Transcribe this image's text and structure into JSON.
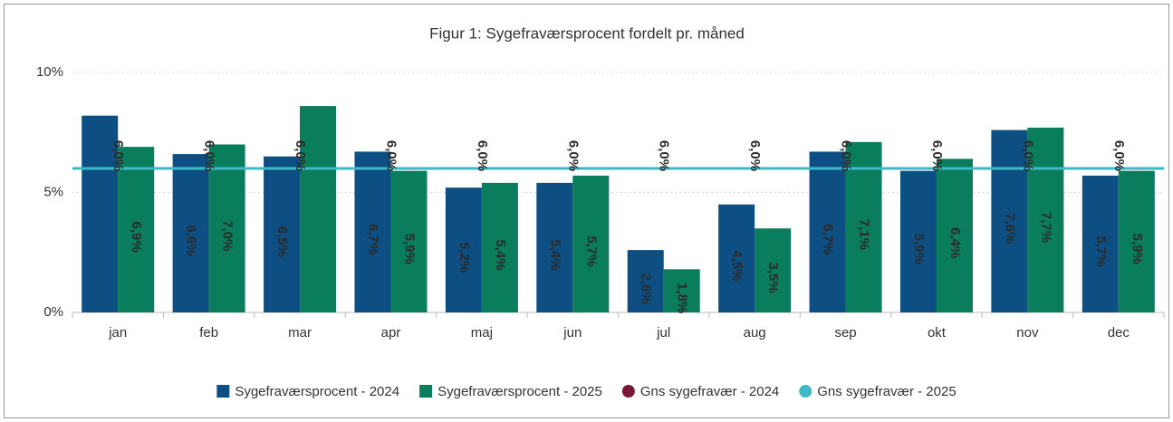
{
  "chart_data": {
    "type": "bar",
    "title": "Figur 1: Sygefraværsprocent fordelt pr. måned",
    "categories": [
      "jan",
      "feb",
      "mar",
      "apr",
      "maj",
      "jun",
      "jul",
      "aug",
      "sep",
      "okt",
      "nov",
      "dec"
    ],
    "series": [
      {
        "name": "Sygefraværsprocent - 2024",
        "color": "#0d4f82",
        "type": "bar",
        "values": [
          8.2,
          6.6,
          6.5,
          6.7,
          5.2,
          5.4,
          2.6,
          4.5,
          6.7,
          5.9,
          7.6,
          5.7
        ],
        "value_labels": [
          null,
          "6,6%",
          "6,5%",
          "6,7%",
          "5,2%",
          "5,4%",
          "2,6%",
          "4,5%",
          "6,7%",
          "5,9%",
          "7,6%",
          "5,7%"
        ]
      },
      {
        "name": "Sygefraværsprocent - 2025",
        "color": "#0a7d5c",
        "type": "bar",
        "values": [
          6.9,
          7.0,
          8.6,
          5.9,
          5.4,
          5.7,
          1.8,
          3.5,
          7.1,
          6.4,
          7.7,
          5.9
        ],
        "value_labels": [
          "6,9%",
          "7,0%",
          null,
          "5,9%",
          "5,4%",
          "5,7%",
          "1,8%",
          "3,5%",
          "7,1%",
          "6,4%",
          "7,7%",
          "5,9%"
        ]
      },
      {
        "name": "Gns sygefravær - 2024",
        "color": "#7b1736",
        "type": "line",
        "values": [
          null,
          null,
          null,
          null,
          null,
          null,
          null,
          null,
          null,
          null,
          null,
          null
        ]
      },
      {
        "name": "Gns sygefravær - 2025",
        "color": "#3fb9c6",
        "type": "line",
        "values": [
          6.0,
          6.0,
          6.0,
          6.0,
          6.0,
          6.0,
          6.0,
          6.0,
          6.0,
          6.0,
          6.0,
          6.0
        ],
        "value_labels": [
          "6,0%",
          "6,0%",
          "6,0%",
          "6,0%",
          "6,0%",
          "6,0%",
          "6,0%",
          "6,0%",
          "6,0%",
          "6,0%",
          "6,0%",
          "6,0%"
        ]
      }
    ],
    "ylim": [
      0,
      10
    ],
    "yticks": [
      {
        "value": 0,
        "label": "0%"
      },
      {
        "value": 5,
        "label": "5%"
      },
      {
        "value": 10,
        "label": "10%"
      }
    ],
    "grid": true,
    "legend": "bottom"
  }
}
